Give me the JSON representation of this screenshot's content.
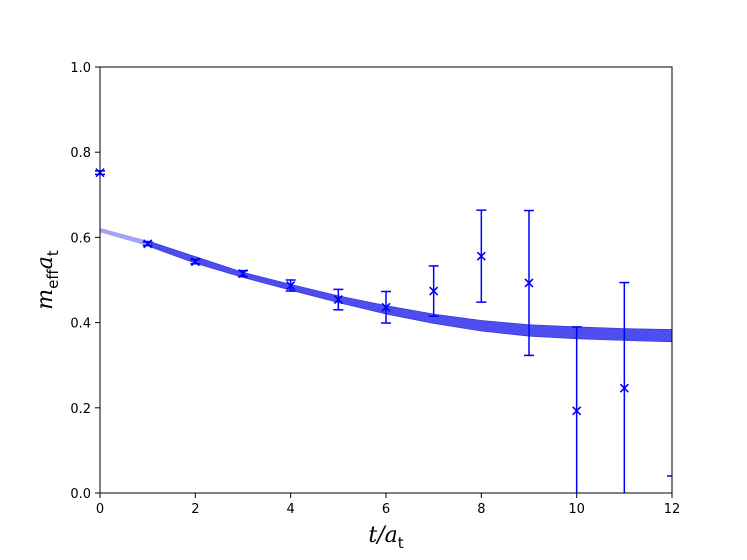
{
  "chart_data": {
    "type": "scatter",
    "xlabel": {
      "main": "t/a",
      "sub": "t"
    },
    "ylabel": {
      "main": "m",
      "sub1": "eff",
      "main2": "a",
      "sub2": "t"
    },
    "xlim": [
      0,
      12
    ],
    "ylim": [
      0.0,
      1.0
    ],
    "xticks": [
      "0",
      "2",
      "4",
      "6",
      "8",
      "10",
      "12"
    ],
    "yticks": [
      "0.0",
      "0.2",
      "0.4",
      "0.6",
      "0.8",
      "1.0"
    ],
    "grid": false,
    "colors": {
      "data": "#0000ff",
      "band": "#4d4df0",
      "band_faded": "#a3a3f5"
    },
    "series": [
      {
        "marker": "x",
        "points": [
          {
            "x": 0,
            "y": 0.752,
            "yerr": 0.004
          },
          {
            "x": 1,
            "y": 0.585,
            "yerr": 0.004
          },
          {
            "x": 2,
            "y": 0.543,
            "yerr": 0.005
          },
          {
            "x": 3,
            "y": 0.515,
            "yerr": 0.007
          },
          {
            "x": 4,
            "y": 0.487,
            "yerr": 0.013
          },
          {
            "x": 5,
            "y": 0.454,
            "yerr": 0.024
          },
          {
            "x": 6,
            "y": 0.436,
            "yerr": 0.037
          },
          {
            "x": 7,
            "y": 0.474,
            "yerr": 0.059
          },
          {
            "x": 8,
            "y": 0.556,
            "yerr": 0.108
          },
          {
            "x": 9,
            "y": 0.493,
            "yerr": 0.17
          },
          {
            "x": 10,
            "y": 0.193,
            "yerr": 0.197
          },
          {
            "x": 11,
            "y": 0.246,
            "yerr": 0.248
          },
          {
            "x": 12,
            "y": 0.04,
            "yerr": 0.0
          }
        ]
      }
    ],
    "fit_band": {
      "x": [
        0,
        1,
        2,
        3,
        4,
        5,
        6,
        7,
        8,
        9,
        10,
        11,
        12
      ],
      "upper": [
        0.622,
        0.592,
        0.555,
        0.518,
        0.49,
        0.463,
        0.44,
        0.42,
        0.405,
        0.395,
        0.39,
        0.386,
        0.384
      ],
      "lower": [
        0.612,
        0.58,
        0.539,
        0.506,
        0.476,
        0.447,
        0.42,
        0.398,
        0.38,
        0.368,
        0.362,
        0.358,
        0.355
      ],
      "faded_until_x": 1
    }
  }
}
